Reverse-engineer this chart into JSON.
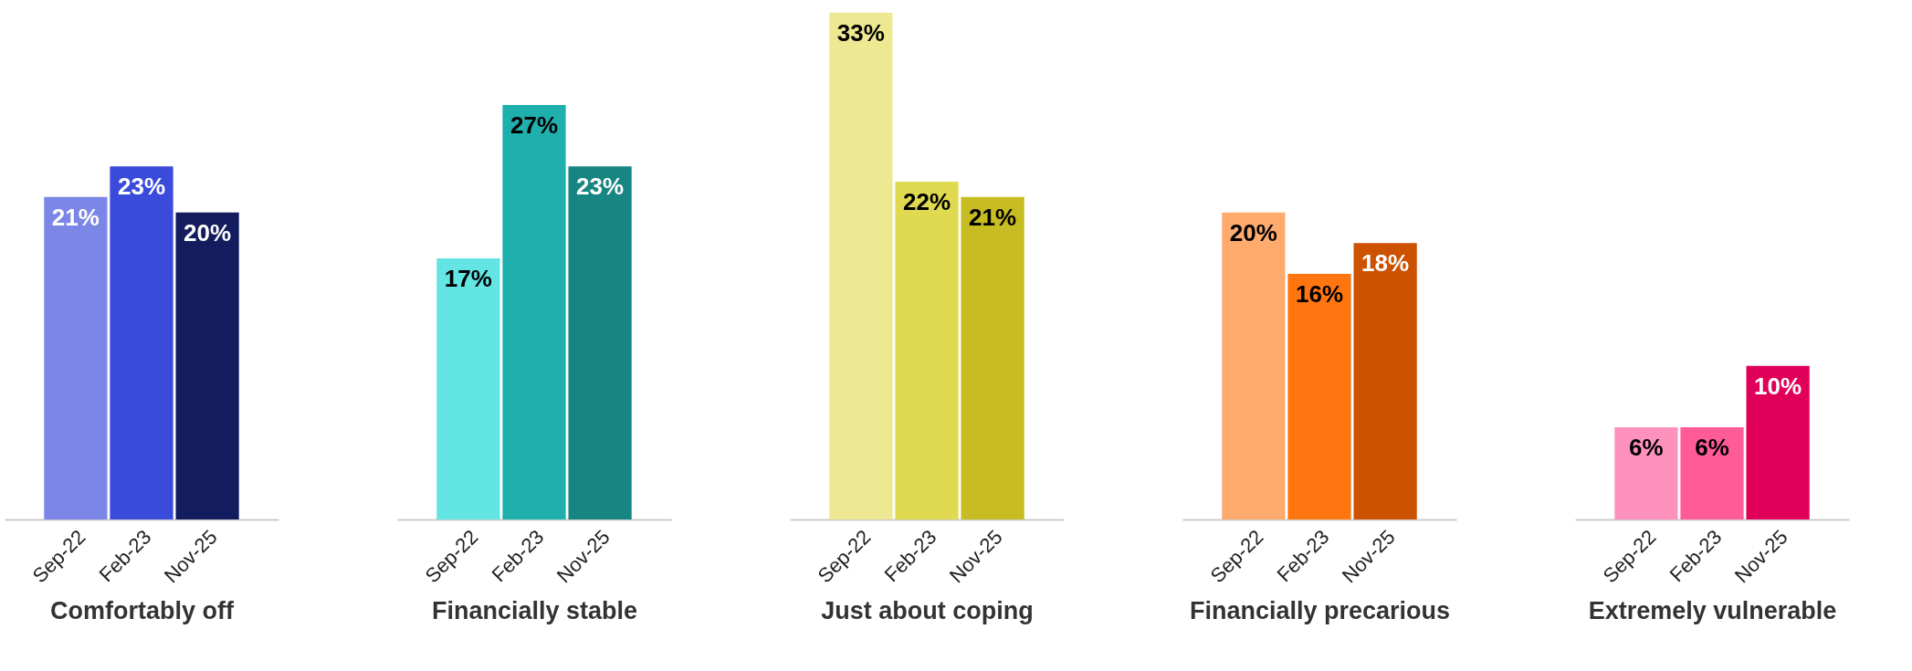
{
  "chart_data": [
    {
      "type": "bar",
      "xlabel": "Comfortably off",
      "categories": [
        "Sep-22",
        "Feb-23",
        "Nov-25"
      ],
      "values": [
        21,
        23,
        20
      ],
      "value_labels": [
        "21%",
        "23%",
        "20%"
      ],
      "colors": [
        "#7b86e6",
        "#3a4bdb",
        "#131c5c"
      ],
      "grid": false,
      "tick_labels": "x"
    },
    {
      "type": "bar",
      "xlabel": "Financially stable",
      "categories": [
        "Sep-22",
        "Feb-23",
        "Nov-25"
      ],
      "values": [
        17,
        27,
        23
      ],
      "value_labels": [
        "17%",
        "27%",
        "23%"
      ],
      "colors": [
        "#62e5e3",
        "#1fafad",
        "#178582"
      ],
      "grid": false,
      "tick_labels": "x"
    },
    {
      "type": "bar",
      "xlabel": "Just about coping",
      "categories": [
        "Sep-22",
        "Feb-23",
        "Nov-25"
      ],
      "values": [
        33,
        22,
        21
      ],
      "value_labels": [
        "33%",
        "22%",
        "21%"
      ],
      "colors": [
        "#ede891",
        "#e0da50",
        "#c7bc22"
      ],
      "grid": false,
      "tick_labels": "x"
    },
    {
      "type": "bar",
      "xlabel": "Financially precarious",
      "categories": [
        "Sep-22",
        "Feb-23",
        "Nov-25"
      ],
      "values": [
        20,
        16,
        18
      ],
      "value_labels": [
        "20%",
        "16%",
        "18%"
      ],
      "colors": [
        "#ffab6e",
        "#ff7611",
        "#cc5200"
      ],
      "grid": false,
      "tick_labels": "x"
    },
    {
      "type": "bar",
      "xlabel": "Extremely vulnerable",
      "categories": [
        "Sep-22",
        "Feb-23",
        "Nov-25"
      ],
      "values": [
        6,
        6,
        10
      ],
      "value_labels": [
        "6%",
        "6%",
        "10%"
      ],
      "colors": [
        "#ff92bd",
        "#ff5b97",
        "#e0005a"
      ],
      "grid": false,
      "tick_labels": "x"
    }
  ]
}
